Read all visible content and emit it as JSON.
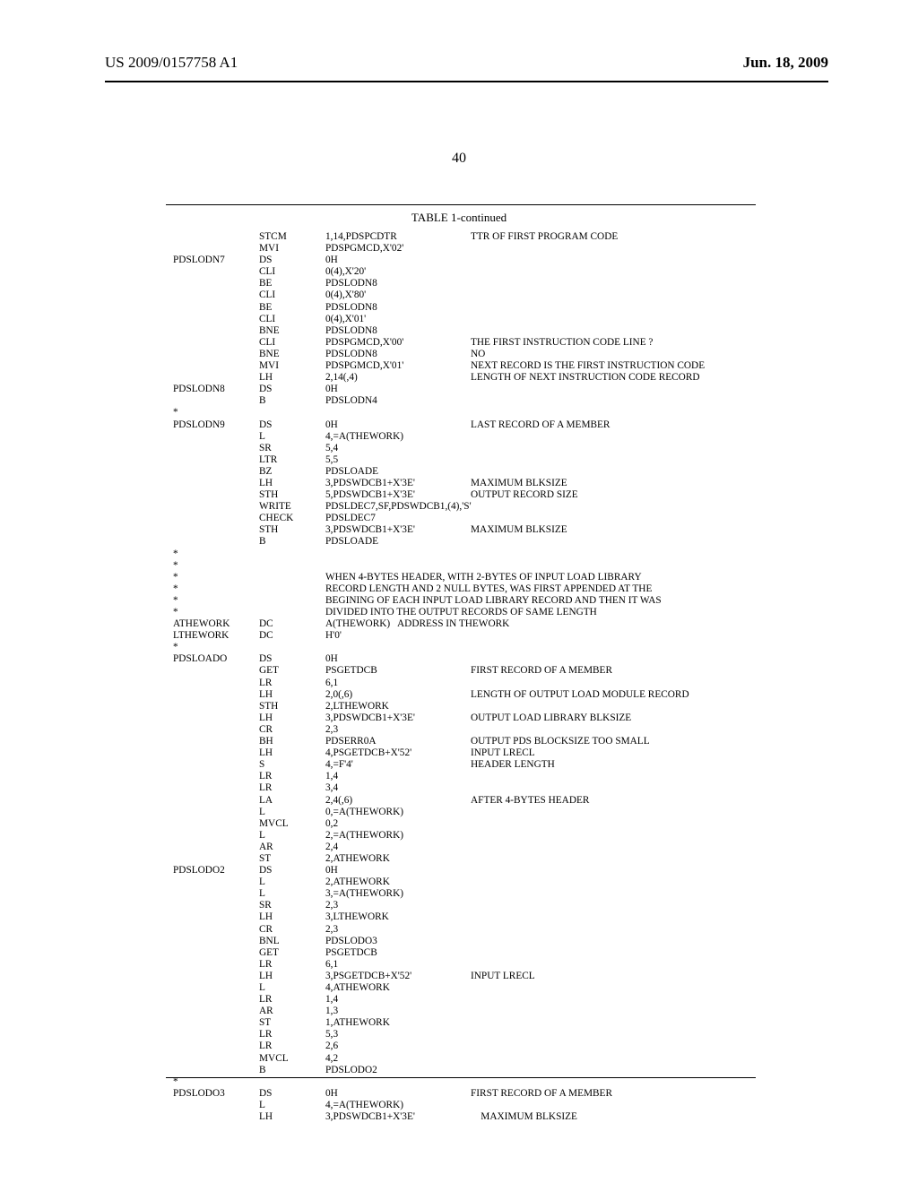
{
  "header": {
    "left": "US 2009/0157758 A1",
    "right": "Jun. 18, 2009",
    "pagenum": "40"
  },
  "table": {
    "title": "TABLE 1-continued"
  },
  "rows": [
    {
      "l": "",
      "o": "STCM",
      "d": "1,14,PDSPCDTR",
      "c": "TTR OF FIRST PROGRAM CODE"
    },
    {
      "l": "",
      "o": "MVI",
      "d": "PDSPGMCD,X'02'",
      "c": ""
    },
    {
      "l": "PDSLODN7",
      "o": "DS",
      "d": "0H",
      "c": ""
    },
    {
      "l": "",
      "o": "CLI",
      "d": "0(4),X'20'",
      "c": ""
    },
    {
      "l": "",
      "o": "BE",
      "d": "PDSLODN8",
      "c": ""
    },
    {
      "l": "",
      "o": "CLI",
      "d": "0(4),X'80'",
      "c": ""
    },
    {
      "l": "",
      "o": "BE",
      "d": "PDSLODN8",
      "c": ""
    },
    {
      "l": "",
      "o": "CLI",
      "d": "0(4),X'01'",
      "c": ""
    },
    {
      "l": "",
      "o": "BNE",
      "d": "PDSLODN8",
      "c": ""
    },
    {
      "l": "",
      "o": "CLI",
      "d": "PDSPGMCD,X'00'",
      "c": "THE FIRST INSTRUCTION CODE LINE ?"
    },
    {
      "l": "",
      "o": "BNE",
      "d": "PDSLODN8",
      "c": "NO"
    },
    {
      "l": "",
      "o": "MVI",
      "d": "PDSPGMCD,X'01'",
      "c": "NEXT RECORD IS THE FIRST INSTRUCTION CODE"
    },
    {
      "l": "",
      "o": "LH",
      "d": "2,14(,4)",
      "c": "LENGTH OF NEXT INSTRUCTION CODE RECORD"
    },
    {
      "l": "PDSLODN8",
      "o": "DS",
      "d": "0H",
      "c": ""
    },
    {
      "l": "",
      "o": "B",
      "d": "PDSLODN4",
      "c": ""
    },
    {
      "l": "*",
      "o": "",
      "d": "",
      "c": ""
    },
    {
      "l": "PDSLODN9",
      "o": "DS",
      "d": "0H",
      "c": "LAST RECORD OF A MEMBER"
    },
    {
      "l": "",
      "o": "L",
      "d": "4,=A(THEWORK)",
      "c": ""
    },
    {
      "l": "",
      "o": "SR",
      "d": "5,4",
      "c": ""
    },
    {
      "l": "",
      "o": "LTR",
      "d": "5,5",
      "c": ""
    },
    {
      "l": "",
      "o": "BZ",
      "d": "PDSLOADE",
      "c": ""
    },
    {
      "l": "",
      "o": "LH",
      "d": "3,PDSWDCB1+X'3E'",
      "c": "MAXIMUM BLKSIZE"
    },
    {
      "l": "",
      "o": "STH",
      "d": "5,PDSWDCB1+X'3E'",
      "c": "OUTPUT RECORD SIZE"
    },
    {
      "l": "",
      "o": "WRITE",
      "d": "PDSLDEC7,SF,PDSWDCB1,(4),'S'",
      "c": ""
    },
    {
      "l": "",
      "o": "CHECK",
      "d": "PDSLDEC7",
      "c": ""
    },
    {
      "l": "",
      "o": "STH",
      "d": "3,PDSWDCB1+X'3E'",
      "c": "MAXIMUM BLKSIZE"
    },
    {
      "l": "",
      "o": "B",
      "d": "PDSLOADE",
      "c": ""
    },
    {
      "l": "*",
      "o": "",
      "d": "",
      "c": ""
    },
    {
      "l": "*",
      "o": "",
      "d": "",
      "c": ""
    },
    {
      "l": "*",
      "o": "",
      "d": "WHEN 4-BYTES HEADER, WITH 2-BYTES OF INPUT LOAD LIBRARY",
      "c": ""
    },
    {
      "l": "*",
      "o": "",
      "d": "RECORD LENGTH AND 2 NULL BYTES, WAS FIRST APPENDED AT THE",
      "c": ""
    },
    {
      "l": "*",
      "o": "",
      "d": "BEGINING OF EACH INPUT LOAD LIBRARY RECORD AND THEN IT WAS",
      "c": ""
    },
    {
      "l": "*",
      "o": "",
      "d": "DIVIDED INTO THE OUTPUT RECORDS OF SAME LENGTH",
      "c": ""
    },
    {
      "l": "ATHEWORK",
      "o": "DC",
      "d": "A(THEWORK)   ADDRESS IN THEWORK",
      "c": ""
    },
    {
      "l": "LTHEWORK",
      "o": "DC",
      "d": "H'0'",
      "c": ""
    },
    {
      "l": "*",
      "o": "",
      "d": "",
      "c": ""
    },
    {
      "l": "PDSLOADO",
      "o": "DS",
      "d": "0H",
      "c": ""
    },
    {
      "l": "",
      "o": "GET",
      "d": "PSGETDCB",
      "c": "FIRST RECORD OF A MEMBER"
    },
    {
      "l": "",
      "o": "LR",
      "d": "6,1",
      "c": ""
    },
    {
      "l": "",
      "o": "LH",
      "d": "2,0(,6)",
      "c": "LENGTH OF OUTPUT LOAD MODULE RECORD"
    },
    {
      "l": "",
      "o": "STH",
      "d": "2,LTHEWORK",
      "c": ""
    },
    {
      "l": "",
      "o": "LH",
      "d": "3,PDSWDCB1+X'3E'",
      "c": "OUTPUT LOAD LIBRARY BLKSIZE"
    },
    {
      "l": "",
      "o": "CR",
      "d": "2,3",
      "c": ""
    },
    {
      "l": "",
      "o": "BH",
      "d": "PDSERR0A",
      "c": "OUTPUT PDS BLOCKSIZE TOO SMALL"
    },
    {
      "l": "",
      "o": "LH",
      "d": "4,PSGETDCB+X'52'",
      "c": "INPUT LRECL"
    },
    {
      "l": "",
      "o": "S",
      "d": "4,=F'4'",
      "c": "HEADER LENGTH"
    },
    {
      "l": "",
      "o": "LR",
      "d": "1,4",
      "c": ""
    },
    {
      "l": "",
      "o": "LR",
      "d": "3,4",
      "c": ""
    },
    {
      "l": "",
      "o": "LA",
      "d": "2,4(,6)",
      "c": "AFTER 4-BYTES HEADER"
    },
    {
      "l": "",
      "o": "L",
      "d": "0,=A(THEWORK)",
      "c": ""
    },
    {
      "l": "",
      "o": "MVCL",
      "d": "0,2",
      "c": ""
    },
    {
      "l": "",
      "o": "L",
      "d": "2,=A(THEWORK)",
      "c": ""
    },
    {
      "l": "",
      "o": "AR",
      "d": "2,4",
      "c": ""
    },
    {
      "l": "",
      "o": "ST",
      "d": "2,ATHEWORK",
      "c": ""
    },
    {
      "l": "PDSLODO2",
      "o": "DS",
      "d": "0H",
      "c": ""
    },
    {
      "l": "",
      "o": "L",
      "d": "2,ATHEWORK",
      "c": ""
    },
    {
      "l": "",
      "o": "L",
      "d": "3,=A(THEWORK)",
      "c": ""
    },
    {
      "l": "",
      "o": "SR",
      "d": "2,3",
      "c": ""
    },
    {
      "l": "",
      "o": "LH",
      "d": "3,LTHEWORK",
      "c": ""
    },
    {
      "l": "",
      "o": "CR",
      "d": "2,3",
      "c": ""
    },
    {
      "l": "",
      "o": "BNL",
      "d": "PDSLODO3",
      "c": ""
    },
    {
      "l": "",
      "o": "GET",
      "d": "PSGETDCB",
      "c": ""
    },
    {
      "l": "",
      "o": "LR",
      "d": "6,1",
      "c": ""
    },
    {
      "l": "",
      "o": "LH",
      "d": "3,PSGETDCB+X'52'",
      "c": "INPUT LRECL"
    },
    {
      "l": "",
      "o": "L",
      "d": "4,ATHEWORK",
      "c": ""
    },
    {
      "l": "",
      "o": "LR",
      "d": "1,4",
      "c": ""
    },
    {
      "l": "",
      "o": "AR",
      "d": "1,3",
      "c": ""
    },
    {
      "l": "",
      "o": "ST",
      "d": "1,ATHEWORK",
      "c": ""
    },
    {
      "l": "",
      "o": "LR",
      "d": "5,3",
      "c": ""
    },
    {
      "l": "",
      "o": "LR",
      "d": "2,6",
      "c": ""
    },
    {
      "l": "",
      "o": "MVCL",
      "d": "4,2",
      "c": ""
    },
    {
      "l": "",
      "o": "B",
      "d": "PDSLODO2",
      "c": ""
    },
    {
      "l": "*",
      "o": "",
      "d": "",
      "c": ""
    },
    {
      "l": "PDSLODO3",
      "o": "DS",
      "d": "0H",
      "c": "FIRST RECORD OF A MEMBER"
    },
    {
      "l": "",
      "o": "L",
      "d": "4,=A(THEWORK)",
      "c": ""
    },
    {
      "l": "",
      "o": "LH",
      "d": "3,PDSWDCB1+X'3E'",
      "c": "    MAXIMUM BLKSIZE"
    }
  ]
}
